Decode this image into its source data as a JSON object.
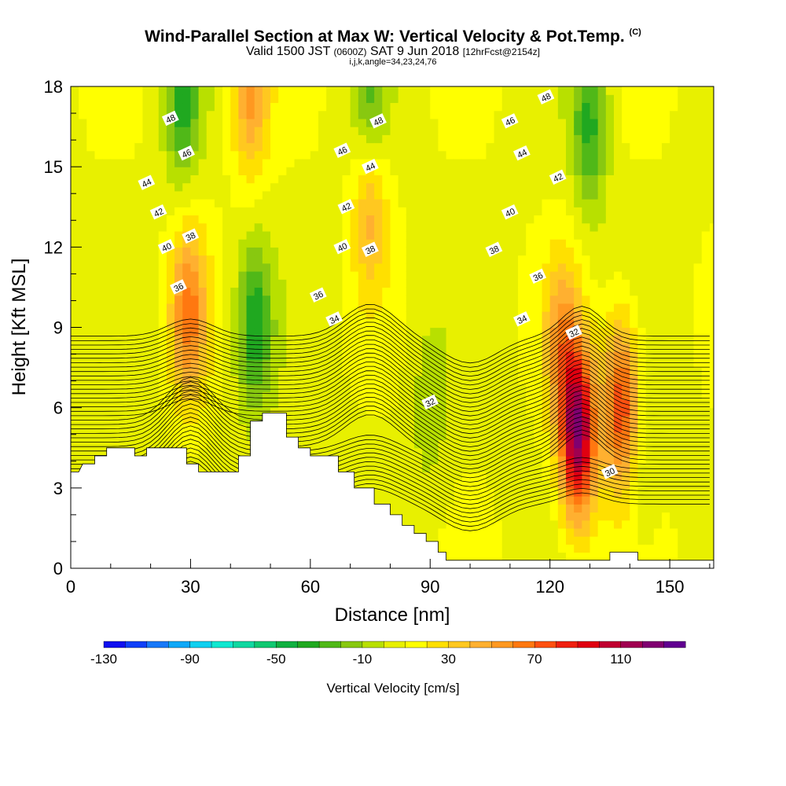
{
  "title": {
    "main": "Wind-Parallel Section at Max W: Vertical Velocity & Pot.Temp.",
    "copyright": "(C)",
    "valid_prefix": "Valid 1500 JST",
    "valid_utc": "(0600Z)",
    "valid_date": "SAT 9 Jun 2018",
    "forecast": "[12hrFcst@2154z]",
    "params": "i,j,k,angle=34,23,24,76"
  },
  "colorbar": {
    "label": "Vertical Velocity [cm/s]",
    "tick_labels": [
      "-130",
      "-90",
      "-50",
      "-10",
      "30",
      "70",
      "110"
    ],
    "colors": [
      "#1010f0",
      "#1040f8",
      "#1878f8",
      "#10a8f8",
      "#10d0f0",
      "#10e8d0",
      "#10d8a0",
      "#10c870",
      "#10b040",
      "#20a820",
      "#50b818",
      "#88c810",
      "#b8e000",
      "#e8f000",
      "#ffff00",
      "#ffe000",
      "#ffc820",
      "#ffb030",
      "#ff9820",
      "#ff7810",
      "#ff5010",
      "#f02010",
      "#e00010",
      "#c00030",
      "#a00050",
      "#800070",
      "#600090"
    ]
  },
  "chart_data": {
    "type": "heatmap",
    "title": "Wind-Parallel Section at Max W: Vertical Velocity & Pot.Temp.",
    "xlabel": "Distance [nm]",
    "ylabel": "Height [Kft MSL]",
    "xlim": [
      0,
      161
    ],
    "ylim": [
      0,
      18
    ],
    "x_ticks": [
      0,
      30,
      60,
      90,
      120,
      150
    ],
    "y_ticks": [
      0,
      3,
      6,
      9,
      12,
      15,
      18
    ],
    "fill_variable": "Vertical Velocity [cm/s]",
    "fill_range": [
      -130,
      150
    ],
    "fill_interval": 10,
    "contour_variable": "Pot.Temp.",
    "contour_levels": [
      30,
      32,
      34,
      36,
      38,
      40,
      42,
      44,
      46,
      48
    ],
    "terrain_kft": [
      [
        0,
        3.6
      ],
      [
        2,
        3.6
      ],
      [
        3,
        3.9
      ],
      [
        6,
        3.9
      ],
      [
        6,
        4.2
      ],
      [
        9,
        4.2
      ],
      [
        9,
        4.5
      ],
      [
        16,
        4.5
      ],
      [
        16,
        4.2
      ],
      [
        19,
        4.2
      ],
      [
        19,
        4.5
      ],
      [
        29,
        4.5
      ],
      [
        29,
        3.9
      ],
      [
        32,
        3.9
      ],
      [
        32,
        3.6
      ],
      [
        42,
        3.6
      ],
      [
        42,
        4.2
      ],
      [
        45,
        4.2
      ],
      [
        45,
        5.5
      ],
      [
        48,
        5.5
      ],
      [
        48,
        5.8
      ],
      [
        54,
        5.8
      ],
      [
        54,
        4.9
      ],
      [
        57,
        4.9
      ],
      [
        57,
        4.5
      ],
      [
        60,
        4.5
      ],
      [
        60,
        4.2
      ],
      [
        67,
        4.2
      ],
      [
        67,
        3.6
      ],
      [
        71,
        3.6
      ],
      [
        71,
        3.0
      ],
      [
        76,
        3.0
      ],
      [
        76,
        2.4
      ],
      [
        80,
        2.4
      ],
      [
        80,
        2.0
      ],
      [
        83,
        2.0
      ],
      [
        83,
        1.6
      ],
      [
        86,
        1.6
      ],
      [
        86,
        1.3
      ],
      [
        89,
        1.3
      ],
      [
        89,
        1.0
      ],
      [
        92,
        1.0
      ],
      [
        92,
        0.6
      ],
      [
        94,
        0.6
      ],
      [
        94,
        0.3
      ],
      [
        135,
        0.3
      ],
      [
        135,
        0.6
      ],
      [
        142,
        0.6
      ],
      [
        142,
        0.3
      ],
      [
        161,
        0.3
      ],
      [
        161,
        0
      ]
    ],
    "updraft_cores_cm_s": [
      {
        "x": 29.5,
        "y": 9.5,
        "w": 55
      },
      {
        "x": 45,
        "y": 17.8,
        "w": 45
      },
      {
        "x": 75,
        "y": 13.5,
        "w": 35
      },
      {
        "x": 127,
        "y": 5.0,
        "w": 110
      },
      {
        "x": 138,
        "y": 6.0,
        "w": 75
      },
      {
        "x": 123,
        "y": 8.5,
        "w": 40
      }
    ],
    "downdraft_cores_cm_s": [
      {
        "x": 46,
        "y": 9.0,
        "w": -45
      },
      {
        "x": 28,
        "y": 17.5,
        "w": -40
      },
      {
        "x": 90,
        "y": 6.0,
        "w": -15
      },
      {
        "x": 75,
        "y": 17.5,
        "w": -30
      },
      {
        "x": 130,
        "y": 16.5,
        "w": -40
      },
      {
        "x": 142,
        "y": 4.0,
        "w": -15
      }
    ],
    "contour_labels": [
      {
        "value": "48",
        "x": 25,
        "y": 16.8
      },
      {
        "value": "46",
        "x": 29,
        "y": 15.5
      },
      {
        "value": "44",
        "x": 19,
        "y": 14.4
      },
      {
        "value": "42",
        "x": 22,
        "y": 13.3
      },
      {
        "value": "40",
        "x": 24,
        "y": 12.0
      },
      {
        "value": "38",
        "x": 30,
        "y": 12.4
      },
      {
        "value": "36",
        "x": 27,
        "y": 10.5
      },
      {
        "value": "48",
        "x": 77,
        "y": 16.7
      },
      {
        "value": "46",
        "x": 68,
        "y": 15.6
      },
      {
        "value": "44",
        "x": 75,
        "y": 15.0
      },
      {
        "value": "42",
        "x": 69,
        "y": 13.5
      },
      {
        "value": "40",
        "x": 68,
        "y": 12.0
      },
      {
        "value": "38",
        "x": 75,
        "y": 11.9
      },
      {
        "value": "36",
        "x": 62,
        "y": 10.2
      },
      {
        "value": "34",
        "x": 66,
        "y": 9.3
      },
      {
        "value": "32",
        "x": 90,
        "y": 6.2
      },
      {
        "value": "48",
        "x": 119,
        "y": 17.6
      },
      {
        "value": "46",
        "x": 110,
        "y": 16.7
      },
      {
        "value": "44",
        "x": 113,
        "y": 15.5
      },
      {
        "value": "42",
        "x": 122,
        "y": 14.6
      },
      {
        "value": "40",
        "x": 110,
        "y": 13.3
      },
      {
        "value": "38",
        "x": 106,
        "y": 11.9
      },
      {
        "value": "36",
        "x": 117,
        "y": 10.9
      },
      {
        "value": "34",
        "x": 113,
        "y": 9.3
      },
      {
        "value": "32",
        "x": 126,
        "y": 8.8
      },
      {
        "value": "30",
        "x": 135,
        "y": 3.6
      }
    ]
  }
}
